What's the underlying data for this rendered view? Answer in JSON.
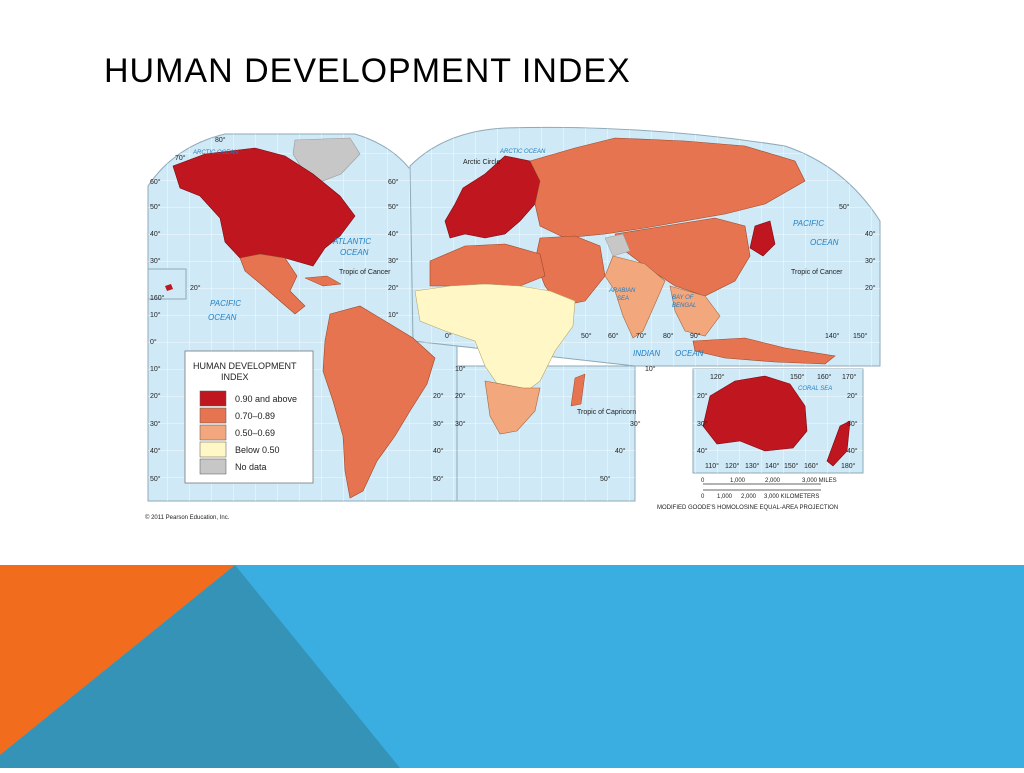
{
  "slide": {
    "title": "HUMAN DEVELOPMENT INDEX"
  },
  "colors": {
    "ocean": "#cfe9f6",
    "grid": "#ffffff",
    "hdi_very_high": "#c0161f",
    "hdi_high": "#e67450",
    "hdi_medium": "#f3a77c",
    "hdi_low": "#fff8c6",
    "no_data": "#c7c7c7",
    "orange_band": "#f26c1e",
    "blue_band": "#3aaee0",
    "dark_blue_band": "#3593b8"
  },
  "legend": {
    "title_line1": "HUMAN DEVELOPMENT",
    "title_line2": "INDEX",
    "items": [
      {
        "label": "0.90 and above",
        "color": "#c0161f"
      },
      {
        "label": "0.70–0.89",
        "color": "#e67450"
      },
      {
        "label": "0.50–0.69",
        "color": "#f3a77c"
      },
      {
        "label": "Below 0.50",
        "color": "#fff8c6"
      },
      {
        "label": "No data",
        "color": "#c7c7c7"
      }
    ]
  },
  "map_labels": {
    "arctic_ocean_left": "ARCTIC OCEAN",
    "arctic_ocean_right": "ARCTIC OCEAN",
    "arctic_circle": "Arctic Circle",
    "atlantic_ocean_1": "ATLANTIC",
    "atlantic_ocean_2": "OCEAN",
    "pacific_ocean_left_1": "PACIFIC",
    "pacific_ocean_left_2": "OCEAN",
    "pacific_ocean_right_1": "PACIFIC",
    "pacific_ocean_right_2": "OCEAN",
    "indian_ocean_1": "INDIAN",
    "indian_ocean_2": "OCEAN",
    "arabian_sea_1": "ARABIAN",
    "arabian_sea_2": "SEA",
    "bay_of_bengal_1": "BAY OF",
    "bay_of_bengal_2": "BENGAL",
    "coral_sea": "CORAL SEA",
    "tropic_of_cancer_left": "Tropic of Cancer",
    "tropic_of_cancer_right": "Tropic of Cancer",
    "tropic_of_capricorn": "Tropic of Capricorn"
  },
  "latitude_labels": {
    "left_edge": [
      "80°",
      "70°",
      "60°",
      "50°",
      "40°",
      "30°",
      "20°",
      "10°",
      "0°",
      "10°",
      "20°",
      "30°",
      "40°",
      "50°"
    ],
    "mid_left": [
      "60°",
      "50°",
      "40°",
      "30°",
      "20°",
      "10°"
    ],
    "mid_right": [
      "20°",
      "30°",
      "40°",
      "50°"
    ],
    "mid2": [
      "10°",
      "20°",
      "30°"
    ],
    "right_edge": [
      "50°",
      "40°",
      "30°",
      "20°"
    ],
    "aus_left": [
      "20°",
      "30°",
      "40°"
    ],
    "aus_right": [
      "20°",
      "30°",
      "40°"
    ],
    "africa_right": [
      "30°",
      "40°",
      "50°",
      "10°",
      "20°",
      "30°"
    ]
  },
  "longitude_labels": {
    "top_row": [
      "50°",
      "60°",
      "70°",
      "80°",
      "90°",
      "140°",
      "150°"
    ],
    "inset_left": "160°",
    "aus_top": [
      "120°",
      "150°",
      "160°",
      "170°"
    ],
    "aus_bottom": [
      "110°",
      "120°",
      "130°",
      "140°",
      "150°",
      "160°",
      "180°"
    ],
    "equator_zero": "0°"
  },
  "scale_bar": {
    "miles": [
      "0",
      "1,000",
      "2,000",
      "3,000 MILES"
    ],
    "kilometers": [
      "0",
      "1,000",
      "2,000",
      "3,000 KILOMETERS"
    ]
  },
  "projection_note": "MODIFIED GOODE'S HOMOLOSINE EQUAL-AREA PROJECTION",
  "copyright": "© 2011 Pearson Education, Inc."
}
